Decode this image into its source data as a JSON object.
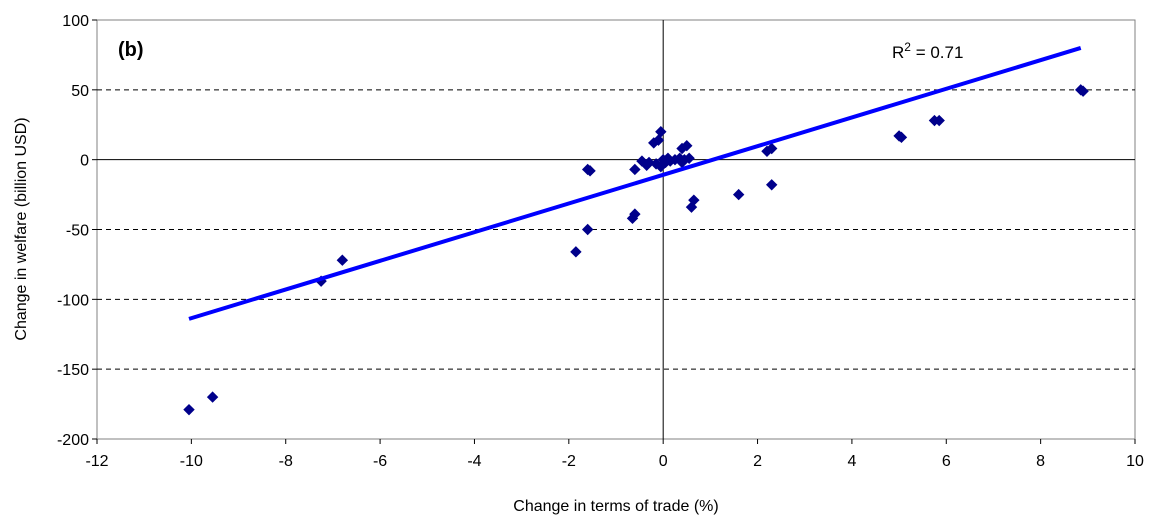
{
  "chart_data": {
    "type": "scatter",
    "panel_label": "(b)",
    "xlabel": "Change in terms of trade (%)",
    "ylabel": "Change in welfare (billion USD)",
    "xlim": [
      -12,
      10
    ],
    "ylim": [
      -200,
      100
    ],
    "xticks": [
      -12,
      -10,
      -8,
      -6,
      -4,
      -2,
      0,
      2,
      4,
      6,
      8,
      10
    ],
    "yticks": [
      -200,
      -150,
      -100,
      -50,
      0,
      50,
      100
    ],
    "grid": "horizontal dashed",
    "annotation": {
      "text": "R",
      "sup": "2",
      "suffix": " = 0.71"
    },
    "colors": {
      "points": "#00008b",
      "trendline": "#0000ff"
    },
    "points": [
      [
        -10.05,
        -179
      ],
      [
        -9.55,
        -170
      ],
      [
        -7.25,
        -87
      ],
      [
        -6.8,
        -72
      ],
      [
        -1.85,
        -66
      ],
      [
        -1.6,
        -50
      ],
      [
        -1.6,
        -7
      ],
      [
        -1.55,
        -8
      ],
      [
        -0.65,
        -42
      ],
      [
        -0.6,
        -39
      ],
      [
        -0.6,
        -7
      ],
      [
        -0.45,
        -1
      ],
      [
        -0.35,
        -4
      ],
      [
        -0.3,
        -2
      ],
      [
        -0.2,
        12
      ],
      [
        -0.15,
        -3
      ],
      [
        -0.1,
        14
      ],
      [
        -0.05,
        20
      ],
      [
        -0.05,
        -5
      ],
      [
        0.0,
        0
      ],
      [
        0.05,
        -2
      ],
      [
        0.1,
        1
      ],
      [
        0.15,
        -1
      ],
      [
        0.25,
        0
      ],
      [
        0.35,
        1
      ],
      [
        0.4,
        -2
      ],
      [
        0.4,
        8
      ],
      [
        0.45,
        0
      ],
      [
        0.5,
        10
      ],
      [
        0.55,
        1
      ],
      [
        0.6,
        -34
      ],
      [
        0.65,
        -29
      ],
      [
        1.6,
        -25
      ],
      [
        2.2,
        6
      ],
      [
        2.3,
        -18
      ],
      [
        2.3,
        8
      ],
      [
        5.0,
        17
      ],
      [
        5.05,
        16
      ],
      [
        5.75,
        28
      ],
      [
        5.85,
        28
      ],
      [
        8.85,
        50
      ],
      [
        8.9,
        49
      ]
    ],
    "trendline": {
      "x": [
        -10.05,
        8.85
      ],
      "y": [
        -114,
        80
      ]
    }
  }
}
